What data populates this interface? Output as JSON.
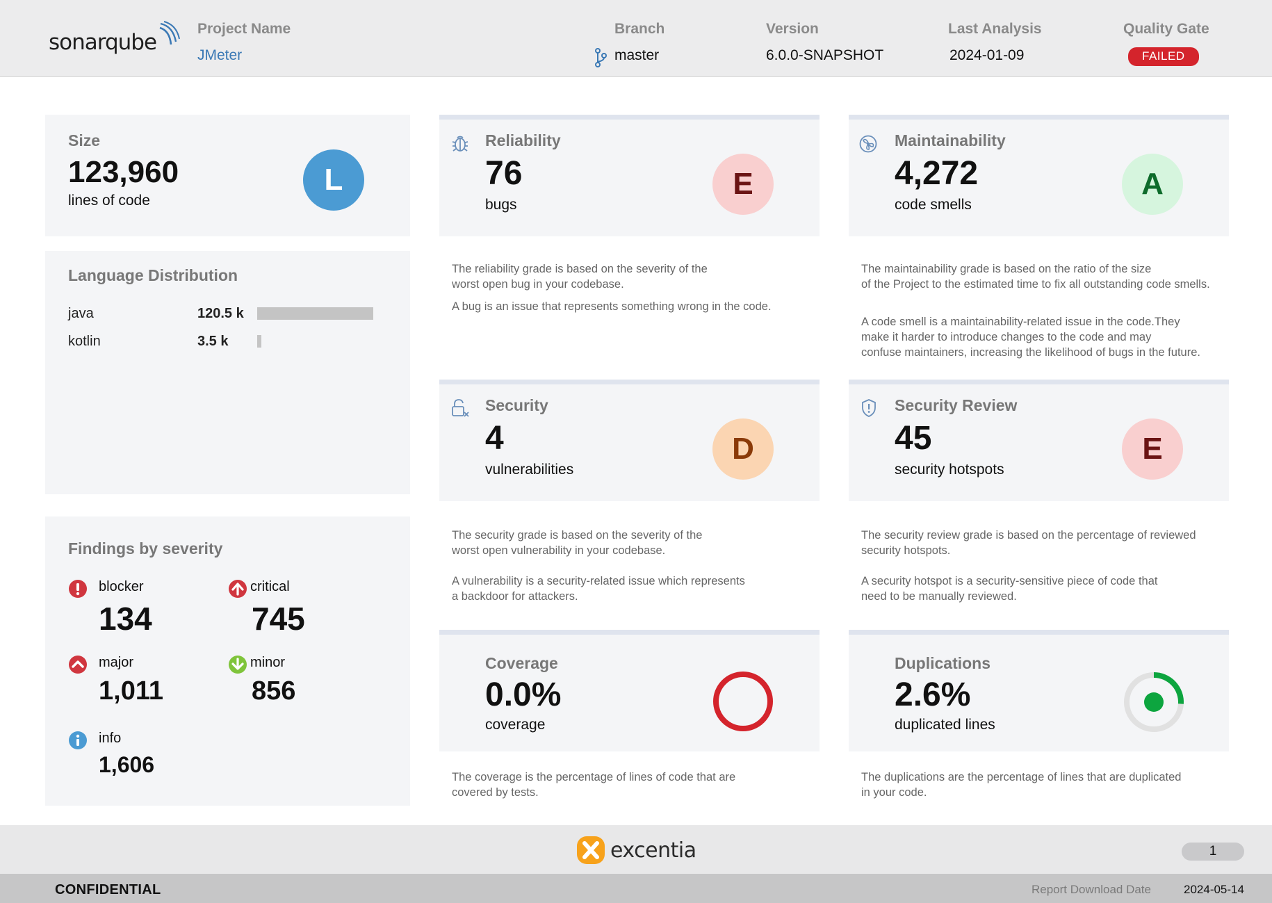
{
  "header": {
    "logo_text": "sonarqube",
    "project_label": "Project Name",
    "project_value": "JMeter",
    "branch_label": "Branch",
    "branch_value": "master",
    "version_label": "Version",
    "version_value": "6.0.0-SNAPSHOT",
    "analysis_label": "Last Analysis",
    "analysis_value": "2024-01-09",
    "gate_label": "Quality Gate",
    "gate_value": "FAILED"
  },
  "size": {
    "title": "Size",
    "value": "123,960",
    "unit": "lines of code",
    "grade": "L",
    "grade_color": "#4b9bd3"
  },
  "languages": {
    "title": "Language Distribution",
    "items": [
      {
        "name": "java",
        "value": "120.5 k",
        "fraction": 0.972
      },
      {
        "name": "kotlin",
        "value": "3.5 k",
        "fraction": 0.028
      }
    ]
  },
  "findings": {
    "title": "Findings by severity",
    "blocker_label": "blocker",
    "blocker_value": "134",
    "critical_label": "critical",
    "critical_value": "745",
    "major_label": "major",
    "major_value": "1,011",
    "minor_label": "minor",
    "minor_value": "856",
    "info_label": "info",
    "info_value": "1,606",
    "colors": {
      "blocker": "#d0363f",
      "critical": "#d0363f",
      "major": "#d0363f",
      "minor": "#7fc43b",
      "info": "#4b9bd3"
    }
  },
  "reliability": {
    "title": "Reliability",
    "value": "76",
    "unit": "bugs",
    "grade": "E",
    "icon": "bug-icon",
    "desc1": "The reliability grade is based on the severity of the\nworst open bug in your codebase.",
    "desc2": "A bug is an issue that represents something wrong in the code."
  },
  "maintainability": {
    "title": "Maintainability",
    "value": "4,272",
    "unit": "code smells",
    "grade": "A",
    "icon": "code-smell-icon",
    "desc1": "The maintainability grade is based on the ratio of the size\nof the Project to the estimated time to fix all outstanding code smells.",
    "desc2": "A code smell is a maintainability-related issue in the code.They\nmake it harder to introduce changes to the code and may\nconfuse maintainers, increasing the likelihood of bugs in the future."
  },
  "security": {
    "title": "Security",
    "value": "4",
    "unit": "vulnerabilities",
    "grade": "D",
    "icon": "unlocked-padlock-icon",
    "desc1": "The security grade is based on the severity of the\nworst open vulnerability in your codebase.",
    "desc2": "A vulnerability is a security-related issue which represents\na backdoor for attackers."
  },
  "security_review": {
    "title": "Security Review",
    "value": "45",
    "unit": "security hotspots",
    "grade": "E",
    "icon": "shield-icon",
    "desc1": "The security review grade is based on the percentage of reviewed\nsecurity hotspots.",
    "desc2": "A security hotspot is a security-sensitive piece of code that\nneed to be manually reviewed."
  },
  "coverage": {
    "title": "Coverage",
    "value": "0.0%",
    "unit": "coverage",
    "percent": 0.0,
    "desc1": "The coverage is the percentage of lines of code that are\ncovered by tests."
  },
  "duplications": {
    "title": "Duplications",
    "value": "2.6%",
    "unit": "duplicated lines",
    "percent": 2.6,
    "desc1": "The duplications are the percentage of lines that are duplicated\nin your code."
  },
  "grade_colors": {
    "A": {
      "bg": "#d6f5de",
      "fg": "#0e6b2b"
    },
    "D": {
      "bg": "#fbd5b2",
      "fg": "#8a3a08"
    },
    "E": {
      "bg": "#f9cfcf",
      "fg": "#6b1414"
    }
  },
  "footer": {
    "brand": "excentia",
    "page": "1",
    "confidential": "CONFIDENTIAL",
    "download_label": "Report Download Date",
    "download_value": "2024-05-14"
  }
}
